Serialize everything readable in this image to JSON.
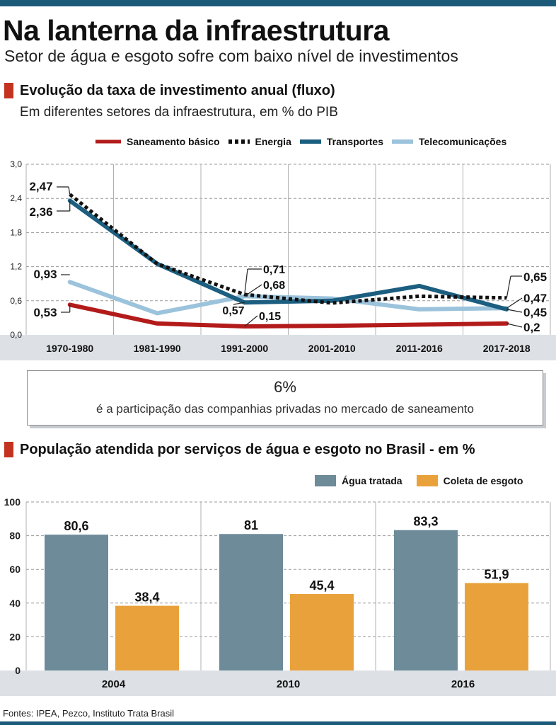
{
  "header": {
    "title": "Na lanterna da infraestrutura",
    "subtitle": "Setor de água e esgoto sofre com baixo nível de investimentos"
  },
  "colors": {
    "accent_bar": "#1c5a7a",
    "section_marker": "#c3331f",
    "saneamento": "#b31b1b",
    "energia": "#111111",
    "transportes": "#1b5e80",
    "telecom": "#9cc3dc",
    "agua": "#6d8b99",
    "esgoto": "#e9a23b",
    "axis_band": "#dde1e5"
  },
  "section1": {
    "title": "Evolução da taxa de investimento anual (fluxo)",
    "subtitle": "Em diferentes setores da infraestrutura, em % do PIB"
  },
  "callout": {
    "value": "6%",
    "text": "é a participação das companhias privadas no mercado de saneamento"
  },
  "section2": {
    "title": "População atendida por serviços de água e esgoto no Brasil - em %"
  },
  "source": "Fontes: IPEA, Pezco, Instituto Trata Brasil",
  "chart_data": [
    {
      "type": "line",
      "categories": [
        "1970-1980",
        "1981-1990",
        "1991-2000",
        "2001-2010",
        "2011-2016",
        "2017-2018"
      ],
      "yticks": [
        "0,0",
        "0,6",
        "1,2",
        "1,8",
        "2,4",
        "3,0"
      ],
      "ylim": [
        0,
        3.0
      ],
      "grid": true,
      "legend_position": "top",
      "series": [
        {
          "name": "Saneamento básico",
          "color": "#b31b1b",
          "style": "solid",
          "values": [
            0.53,
            0.2,
            0.15,
            0.16,
            0.18,
            0.2
          ]
        },
        {
          "name": "Energia",
          "color": "#111111",
          "style": "dotted",
          "values": [
            2.47,
            1.25,
            0.71,
            0.56,
            0.68,
            0.65
          ]
        },
        {
          "name": "Transportes",
          "color": "#1b5e80",
          "style": "solid",
          "values": [
            2.36,
            1.25,
            0.57,
            0.6,
            0.86,
            0.45
          ]
        },
        {
          "name": "Telecomunicações",
          "color": "#9cc3dc",
          "style": "solid",
          "values": [
            0.93,
            0.38,
            0.68,
            0.64,
            0.45,
            0.47
          ]
        }
      ],
      "annotations": [
        "2,47",
        "2,36",
        "0,93",
        "0,53",
        "0,71",
        "0,68",
        "0,57",
        "0,15",
        "0,65",
        "0,47",
        "0,45",
        "0,2"
      ]
    },
    {
      "type": "bar",
      "categories": [
        "2004",
        "2010",
        "2016"
      ],
      "yticks": [
        "0",
        "20",
        "40",
        "60",
        "80",
        "100"
      ],
      "ylim": [
        0,
        100
      ],
      "grid": true,
      "legend_position": "top-right",
      "series": [
        {
          "name": "Água tratada",
          "color": "#6d8b99",
          "values": [
            80.6,
            81,
            83.3
          ],
          "labels": [
            "80,6",
            "81",
            "83,3"
          ]
        },
        {
          "name": "Coleta de esgoto",
          "color": "#e9a23b",
          "values": [
            38.4,
            45.4,
            51.9
          ],
          "labels": [
            "38,4",
            "45,4",
            "51,9"
          ]
        }
      ]
    }
  ]
}
